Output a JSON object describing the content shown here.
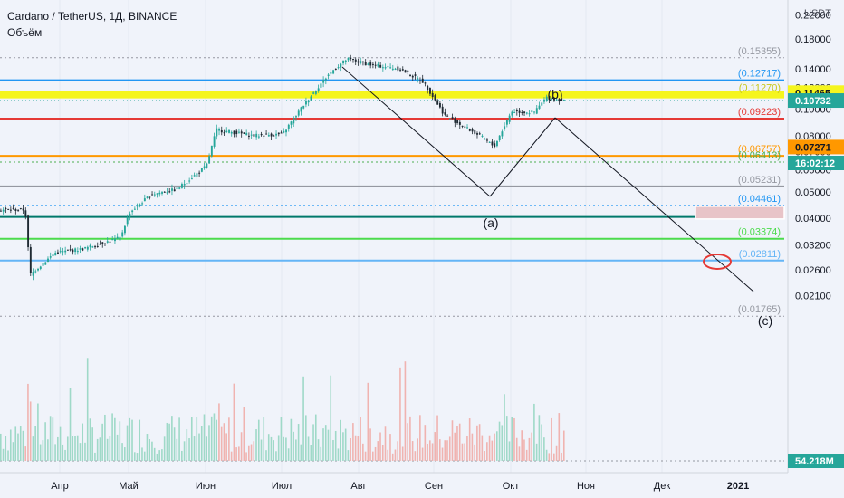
{
  "header": {
    "title": "Cardano / TetherUS, 1Д, BINANCE",
    "volume_label": "Объём"
  },
  "price_axis": {
    "unit": "USDT",
    "ticks": [
      "0.22000",
      "0.18000",
      "0.14000",
      "0.12000",
      "0.10000",
      "0.08000",
      "0.07000",
      "0.06000",
      "0.05000",
      "0.04000",
      "0.03200",
      "0.02600",
      "0.02100"
    ]
  },
  "time_axis": {
    "labels": [
      "Апр",
      "Май",
      "Июн",
      "Июл",
      "Авг",
      "Сен",
      "Окт",
      "Ноя",
      "Дек",
      "2021"
    ]
  },
  "fib_levels": [
    {
      "label": "(0.15355)",
      "value": 0.15355,
      "color": "#9598a1",
      "style": "dotted"
    },
    {
      "label": "(0.12717)",
      "value": 0.12717,
      "color": "#2196f3",
      "style": "solid"
    },
    {
      "label": "(0.11270)",
      "value": 0.1127,
      "color": "#f5f51e",
      "style": "solid"
    },
    {
      "label": "(0.09223)",
      "value": 0.09223,
      "color": "#e53935",
      "style": "solid"
    },
    {
      "label": "(0.06757)",
      "value": 0.06757,
      "color": "#ff9800",
      "style": "solid"
    },
    {
      "label": "(0.06413)",
      "value": 0.06413,
      "color": "#4caf50",
      "style": "dotted"
    },
    {
      "label": "(0.05231)",
      "value": 0.05231,
      "color": "#9598a1",
      "style": "solid"
    },
    {
      "label": "(0.04461)",
      "value": 0.04461,
      "color": "#2196f3",
      "style": "dotted"
    },
    {
      "label": "(0.04049)",
      "value": 0.04049,
      "color": "#00796b",
      "style": "solid"
    },
    {
      "label": "(0.03374)",
      "value": 0.03374,
      "color": "#4cdb4c",
      "style": "solid"
    },
    {
      "label": "(0.02811)",
      "value": 0.02811,
      "color": "#64b5f6",
      "style": "solid"
    },
    {
      "label": "(0.01765)",
      "value": 0.01765,
      "color": "#9598a1",
      "style": "dotted"
    }
  ],
  "badges": [
    {
      "text": "0.11465",
      "bg": "#f5f51e",
      "fg": "#131722"
    },
    {
      "text": "0.10732",
      "bg": "#26a69a",
      "fg": "#ffffff"
    },
    {
      "text": "16:02:12",
      "bg": "#26a69a",
      "fg": "#ffffff"
    },
    {
      "text": "0.07271",
      "bg": "#ff9800",
      "fg": "#131722"
    },
    {
      "text": "54.218M",
      "bg": "#26a69a",
      "fg": "#ffffff"
    }
  ],
  "wave_labels": [
    "(a)",
    "(b)",
    "(c)"
  ],
  "chart_data": {
    "type": "candlestick",
    "scale": "log",
    "ylim": [
      0.0157,
      0.225
    ],
    "x_labels": [
      "Апр",
      "Май",
      "Июн",
      "Июл",
      "Авг",
      "Сен",
      "Окт",
      "Ноя",
      "Дек",
      "2021"
    ],
    "price_path": [
      {
        "date": "Mar 13",
        "close": 0.043
      },
      {
        "date": "Mar 15",
        "close": 0.025
      },
      {
        "date": "Mar 25",
        "close": 0.03
      },
      {
        "date": "Apr 10",
        "close": 0.031
      },
      {
        "date": "Apr 25",
        "close": 0.034
      },
      {
        "date": "May 01",
        "close": 0.042
      },
      {
        "date": "May 10",
        "close": 0.049
      },
      {
        "date": "May 20",
        "close": 0.051
      },
      {
        "date": "Jun 01",
        "close": 0.062
      },
      {
        "date": "Jun 05",
        "close": 0.084
      },
      {
        "date": "Jun 20",
        "close": 0.08
      },
      {
        "date": "Jul 01",
        "close": 0.081
      },
      {
        "date": "Jul 10",
        "close": 0.105
      },
      {
        "date": "Jul 20",
        "close": 0.135
      },
      {
        "date": "Jul 27",
        "close": 0.152
      },
      {
        "date": "Aug 05",
        "close": 0.145
      },
      {
        "date": "Aug 17",
        "close": 0.14
      },
      {
        "date": "Aug 27",
        "close": 0.125
      },
      {
        "date": "Sep 05",
        "close": 0.095
      },
      {
        "date": "Sep 20",
        "close": 0.079
      },
      {
        "date": "Sep 25",
        "close": 0.073
      },
      {
        "date": "Oct 01",
        "close": 0.098
      },
      {
        "date": "Oct 10",
        "close": 0.097
      },
      {
        "date": "Oct 15",
        "close": 0.11
      },
      {
        "date": "Oct 23",
        "close": 0.107
      }
    ],
    "last_price": 0.10732,
    "volume_last": "54.218M",
    "annotations": [
      "(a)",
      "(b)",
      "(c)"
    ]
  }
}
